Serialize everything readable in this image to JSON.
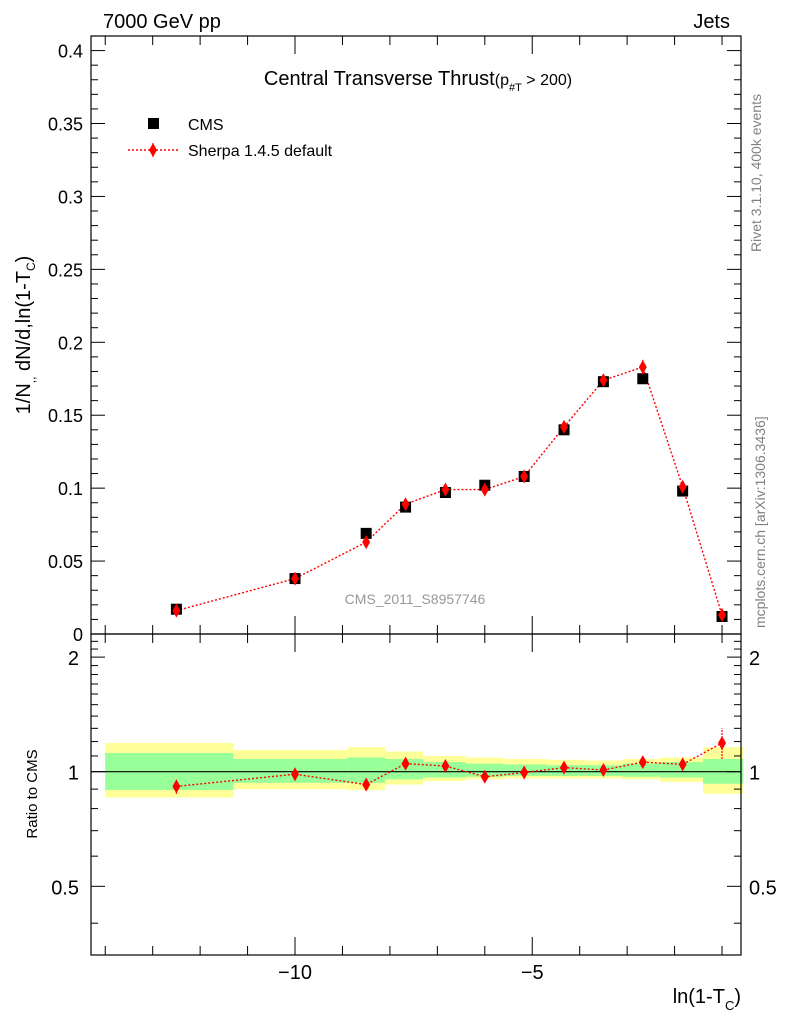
{
  "header": {
    "left": "7000 GeV pp",
    "right": "Jets"
  },
  "side_labels": {
    "rivet": "Rivet 3.1.10,  400k events",
    "mcplots": "mcplots.cern.ch [arXiv:1306.3436]"
  },
  "watermark": "CMS_2011_S8957746",
  "colors": {
    "data": "#000000",
    "mc": "#ff0000",
    "band_inner": "#99ff99",
    "band_outer": "#ffff99"
  },
  "chart_data": [
    {
      "type": "scatter",
      "title_main": "Central Transverse Thrust",
      "title_sub_open": "(p",
      "title_sub_script": "#T",
      "title_sub_close": " > 200)",
      "ylabel_main": "1/N",
      "ylabel_sub1": ",,",
      "ylabel_mid": " dN/d,ln(1-T",
      "ylabel_sub2": "C",
      "ylabel_close": ")",
      "xlabel_main": "ln(1-T",
      "xlabel_sub": "C",
      "xlabel_close": ")",
      "xlim": [
        -14.3,
        -0.6
      ],
      "ylim": [
        0,
        0.41
      ],
      "yticks": [
        {
          "v": 0,
          "label": "0"
        },
        {
          "v": 0.05,
          "label": "0.05"
        },
        {
          "v": 0.1,
          "label": "0.1"
        },
        {
          "v": 0.15,
          "label": "0.15"
        },
        {
          "v": 0.2,
          "label": "0.2"
        },
        {
          "v": 0.25,
          "label": "0.25"
        },
        {
          "v": 0.3,
          "label": "0.3"
        },
        {
          "v": 0.35,
          "label": "0.35"
        },
        {
          "v": 0.4,
          "label": "0.4"
        }
      ],
      "legend": [
        {
          "label": "CMS",
          "marker": "square"
        },
        {
          "label": "Sherpa 1.4.5 default",
          "marker": "diamond"
        }
      ],
      "legend_position": "top-left",
      "series": [
        {
          "name": "CMS",
          "x": [
            -12.5,
            -10.0,
            -8.5,
            -7.67,
            -6.83,
            -6.0,
            -5.17,
            -4.33,
            -3.5,
            -2.67,
            -1.83,
            -1.0
          ],
          "y": [
            0.017,
            0.038,
            0.069,
            0.087,
            0.097,
            0.102,
            0.108,
            0.14,
            0.173,
            0.175,
            0.098,
            0.012
          ]
        },
        {
          "name": "Sherpa 1.4.5 default",
          "x": [
            -12.5,
            -10.0,
            -8.5,
            -7.67,
            -6.83,
            -6.0,
            -5.17,
            -4.33,
            -3.5,
            -2.67,
            -1.83,
            -1.0
          ],
          "y": [
            0.016,
            0.038,
            0.063,
            0.089,
            0.099,
            0.099,
            0.108,
            0.142,
            0.174,
            0.183,
            0.101,
            0.013
          ],
          "yerr": [
            0.001,
            0.002,
            0.003,
            0.003,
            0.003,
            0.003,
            0.003,
            0.004,
            0.004,
            0.005,
            0.003,
            0.001
          ]
        }
      ]
    },
    {
      "type": "scatter",
      "ylabel": "Ratio to CMS",
      "xlim": [
        -14.3,
        -0.6
      ],
      "ylim": [
        0.33,
        2.3
      ],
      "log_y": true,
      "xticks": [
        {
          "v": -10,
          "label": "−10"
        },
        {
          "v": -5,
          "label": "−5"
        }
      ],
      "yticks": [
        {
          "v": 0.5,
          "label": "0.5"
        },
        {
          "v": 1,
          "label": "1"
        },
        {
          "v": 2,
          "label": "2"
        }
      ],
      "bands": [
        {
          "x0": -14.0,
          "x1": -11.3,
          "inner": [
            0.895,
            1.12
          ],
          "outer": [
            0.855,
            1.19
          ]
        },
        {
          "x0": -11.3,
          "x1": -8.9,
          "inner": [
            0.935,
            1.08
          ],
          "outer": [
            0.9,
            1.14
          ]
        },
        {
          "x0": -8.9,
          "x1": -8.1,
          "inner": [
            0.935,
            1.09
          ],
          "outer": [
            0.895,
            1.16
          ]
        },
        {
          "x0": -8.1,
          "x1": -7.3,
          "inner": [
            0.955,
            1.08
          ],
          "outer": [
            0.925,
            1.13
          ]
        },
        {
          "x0": -7.3,
          "x1": -6.4,
          "inner": [
            0.965,
            1.06
          ],
          "outer": [
            0.945,
            1.1
          ]
        },
        {
          "x0": -6.4,
          "x1": -5.6,
          "inner": [
            0.97,
            1.05
          ],
          "outer": [
            0.955,
            1.09
          ]
        },
        {
          "x0": -5.6,
          "x1": -4.7,
          "inner": [
            0.975,
            1.045
          ],
          "outer": [
            0.96,
            1.08
          ]
        },
        {
          "x0": -4.7,
          "x1": -3.9,
          "inner": [
            0.975,
            1.04
          ],
          "outer": [
            0.96,
            1.075
          ]
        },
        {
          "x0": -3.9,
          "x1": -3.1,
          "inner": [
            0.975,
            1.04
          ],
          "outer": [
            0.96,
            1.07
          ]
        },
        {
          "x0": -3.1,
          "x1": -2.3,
          "inner": [
            0.97,
            1.05
          ],
          "outer": [
            0.955,
            1.08
          ]
        },
        {
          "x0": -2.3,
          "x1": -1.4,
          "inner": [
            0.965,
            1.06
          ],
          "outer": [
            0.94,
            1.09
          ]
        },
        {
          "x0": -1.4,
          "x1": -0.55,
          "inner": [
            0.93,
            1.08
          ],
          "outer": [
            0.875,
            1.16
          ]
        }
      ],
      "series": [
        {
          "name": "Sherpa 1.4.5 default",
          "x": [
            -12.5,
            -10.0,
            -8.5,
            -7.67,
            -6.83,
            -6.0,
            -5.17,
            -4.33,
            -3.5,
            -2.67,
            -1.83,
            -1.0
          ],
          "y": [
            0.915,
            0.985,
            0.925,
            1.05,
            1.035,
            0.97,
            0.995,
            1.025,
            1.01,
            1.06,
            1.045,
            1.19
          ],
          "yerr": [
            0.04,
            0.02,
            0.03,
            0.03,
            0.025,
            0.02,
            0.02,
            0.02,
            0.02,
            0.025,
            0.03,
            0.11
          ]
        }
      ]
    }
  ]
}
